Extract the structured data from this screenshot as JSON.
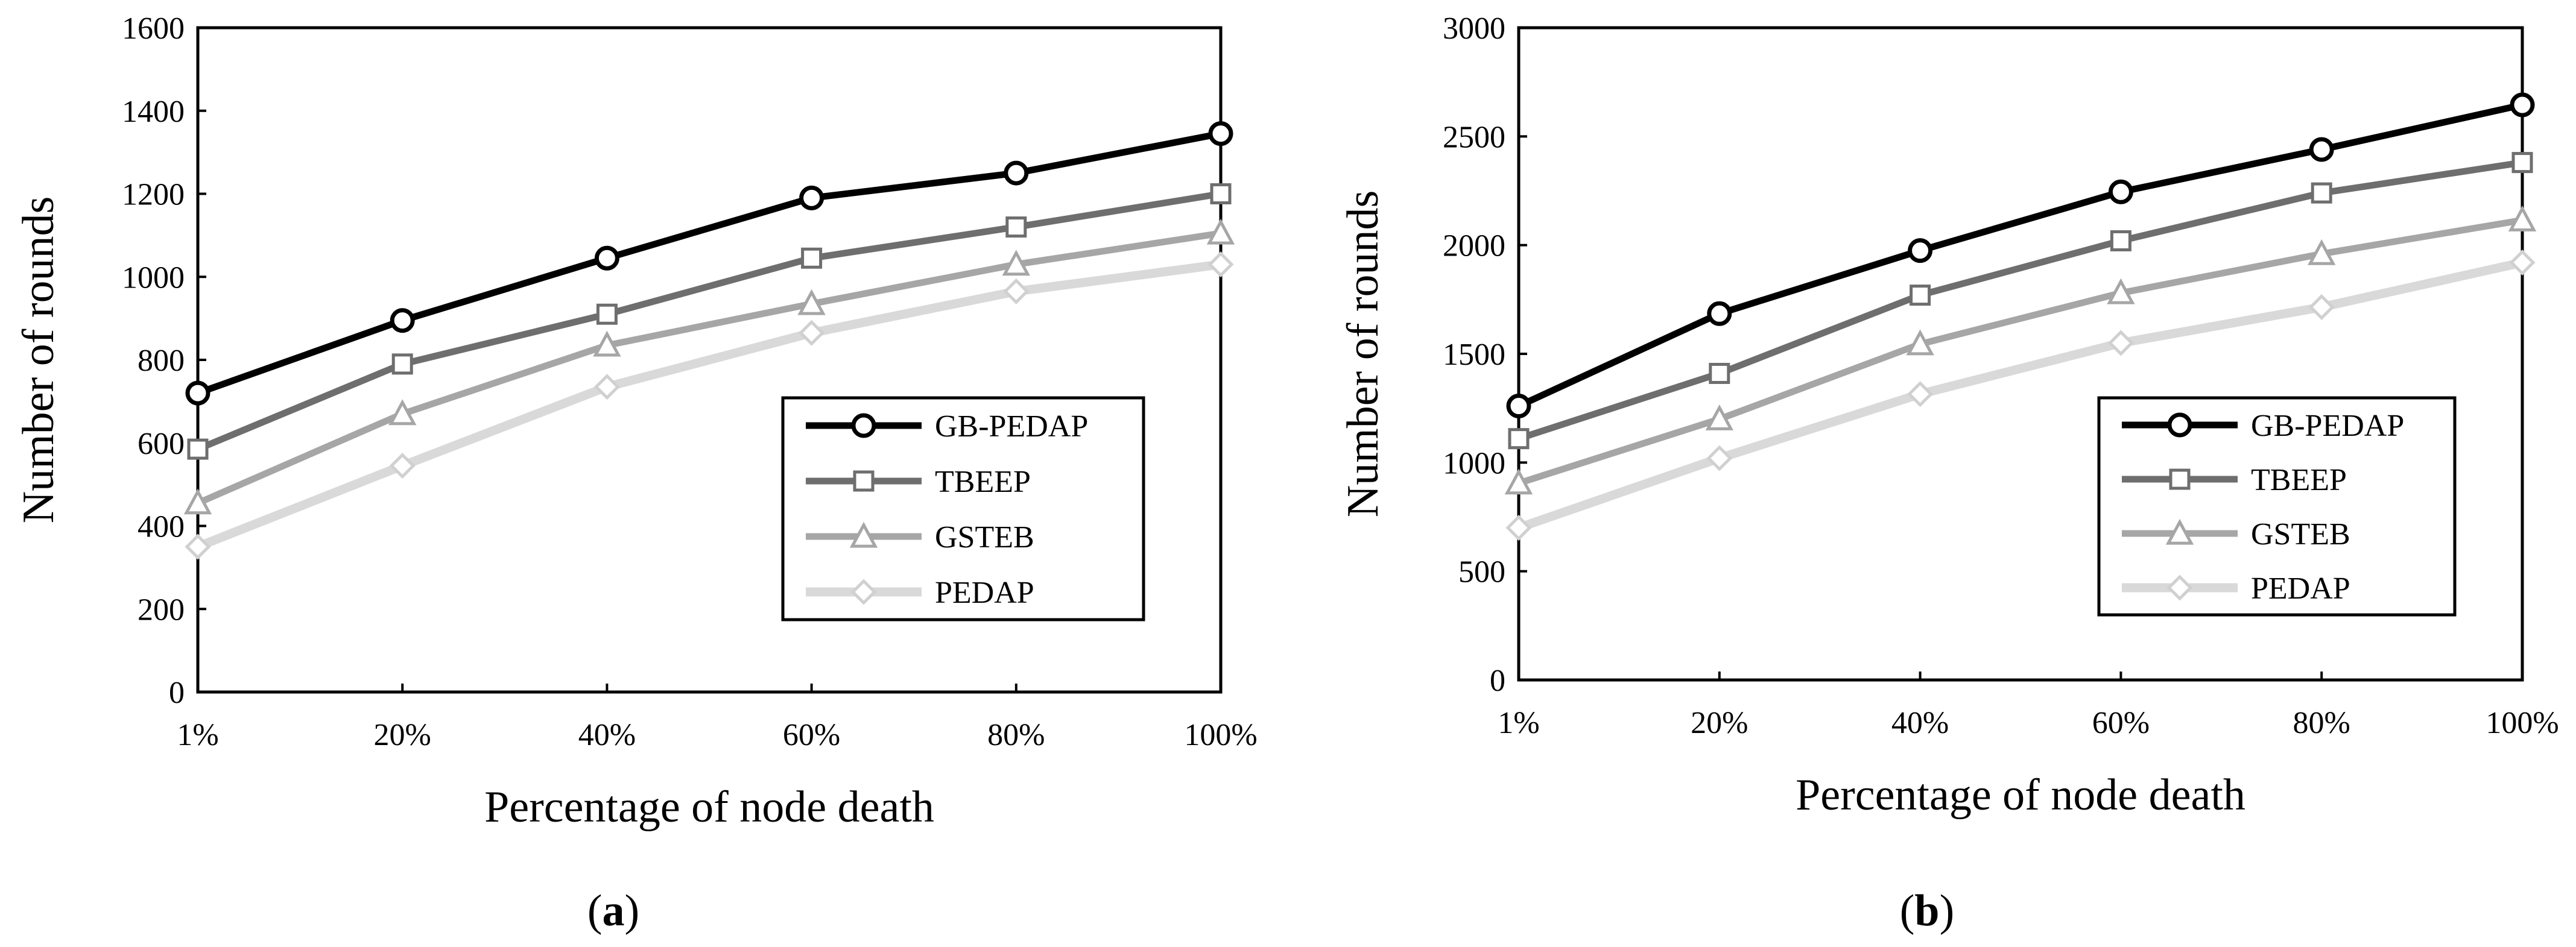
{
  "chart_data": [
    {
      "type": "line",
      "panel_label": "a",
      "categories": [
        "1%",
        "20%",
        "40%",
        "60%",
        "80%",
        "100%"
      ],
      "xlabel": "Percentage of node death",
      "ylabel": "Number of rounds",
      "ylim": [
        0,
        1600
      ],
      "yticks": [
        "0",
        "200",
        "400",
        "600",
        "800",
        "1000",
        "1200",
        "1400",
        "1600"
      ],
      "legend_position": "bottom-right",
      "series": [
        {
          "name": "GB-PEDAP",
          "marker": "circle",
          "color": "#000000",
          "values": [
            720,
            895,
            1045,
            1190,
            1250,
            1345
          ]
        },
        {
          "name": "TBEEP",
          "marker": "square",
          "color": "#6e6e6e",
          "values": [
            585,
            790,
            910,
            1045,
            1120,
            1200
          ]
        },
        {
          "name": "GSTEB",
          "marker": "triangle",
          "color": "#a6a6a6",
          "values": [
            455,
            670,
            835,
            935,
            1030,
            1105
          ]
        },
        {
          "name": "PEDAP",
          "marker": "diamond",
          "color": "#d9d9d9",
          "values": [
            350,
            545,
            735,
            865,
            965,
            1030
          ]
        }
      ]
    },
    {
      "type": "line",
      "panel_label": "b",
      "categories": [
        "1%",
        "20%",
        "40%",
        "60%",
        "80%",
        "100%"
      ],
      "xlabel": "Percentage of node death",
      "ylabel": "Number of rounds",
      "ylim": [
        0,
        3000
      ],
      "yticks": [
        "0",
        "500",
        "1000",
        "1500",
        "2000",
        "2500",
        "3000"
      ],
      "legend_position": "bottom-right",
      "series": [
        {
          "name": "GB-PEDAP",
          "marker": "circle",
          "color": "#000000",
          "values": [
            1260,
            1685,
            1975,
            2245,
            2440,
            2645
          ]
        },
        {
          "name": "TBEEP",
          "marker": "square",
          "color": "#6e6e6e",
          "values": [
            1110,
            1410,
            1770,
            2020,
            2240,
            2380
          ]
        },
        {
          "name": "GSTEB",
          "marker": "triangle",
          "color": "#a6a6a6",
          "values": [
            905,
            1200,
            1545,
            1780,
            1960,
            2115
          ]
        },
        {
          "name": "PEDAP",
          "marker": "diamond",
          "color": "#d9d9d9",
          "values": [
            700,
            1020,
            1315,
            1550,
            1715,
            1920
          ]
        }
      ]
    }
  ]
}
